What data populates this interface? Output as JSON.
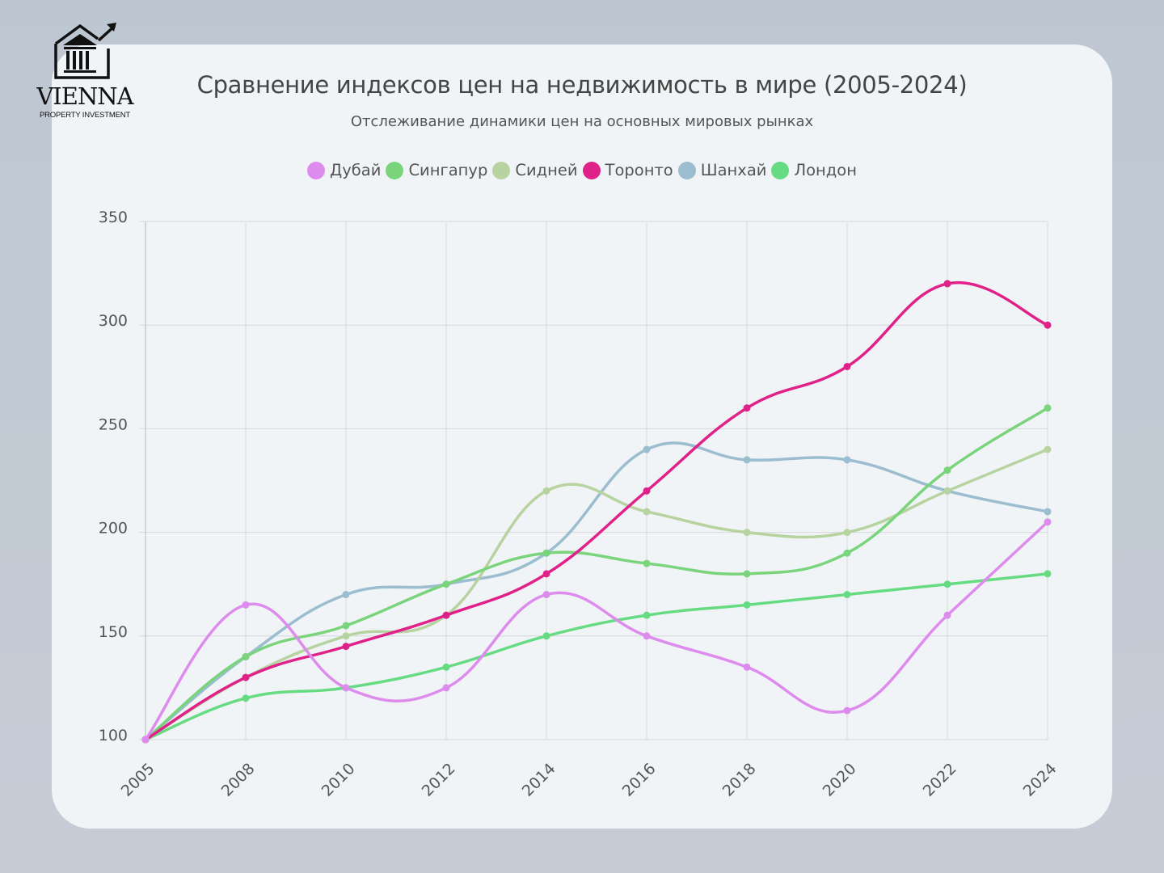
{
  "brand": {
    "name": "VIENNA",
    "tagline": "PROPERTY INVESTMENT"
  },
  "header": {
    "title": "Сравнение индексов цен на недвижимость в мире (2005-2024)",
    "subtitle": "Отслеживание динамики цен на основных мировых рынках"
  },
  "legend": [
    {
      "label": "Дубай",
      "color": "#dd8ced"
    },
    {
      "label": "Сингапур",
      "color": "#79d47c"
    },
    {
      "label": "Сидней",
      "color": "#b6d3a0"
    },
    {
      "label": "Торонто",
      "color": "#e02189"
    },
    {
      "label": "Шанхай",
      "color": "#9bbdd0"
    },
    {
      "label": "Лондон",
      "color": "#66db82"
    }
  ],
  "chart_data": {
    "type": "line",
    "title": "Сравнение индексов цен на недвижимость в мире (2005-2024)",
    "subtitle": "Отслеживание динамики цен на основных мировых рынках",
    "xlabel": "",
    "ylabel": "",
    "categories": [
      "2005",
      "2008",
      "2010",
      "2012",
      "2014",
      "2016",
      "2018",
      "2020",
      "2022",
      "2024"
    ],
    "ylim": [
      100,
      350
    ],
    "yticks": [
      100,
      150,
      200,
      250,
      300,
      350
    ],
    "grid": true,
    "legend_position": "top",
    "smooth": true,
    "series": [
      {
        "name": "Дубай",
        "color": "#dd8ced",
        "values": [
          100,
          165,
          125,
          125,
          170,
          150,
          135,
          114,
          160,
          205
        ]
      },
      {
        "name": "Сингапур",
        "color": "#79d47c",
        "values": [
          100,
          140,
          155,
          175,
          190,
          185,
          180,
          190,
          230,
          260
        ]
      },
      {
        "name": "Сидней",
        "color": "#b6d3a0",
        "values": [
          100,
          130,
          150,
          160,
          220,
          210,
          200,
          200,
          220,
          240
        ]
      },
      {
        "name": "Торонто",
        "color": "#e02189",
        "values": [
          100,
          130,
          145,
          160,
          180,
          220,
          260,
          280,
          320,
          300
        ]
      },
      {
        "name": "Шанхай",
        "color": "#9bbdd0",
        "values": [
          100,
          140,
          170,
          175,
          190,
          240,
          235,
          235,
          220,
          210
        ]
      },
      {
        "name": "Лондон",
        "color": "#66db82",
        "values": [
          100,
          120,
          125,
          135,
          150,
          160,
          165,
          170,
          175,
          180
        ]
      }
    ]
  }
}
